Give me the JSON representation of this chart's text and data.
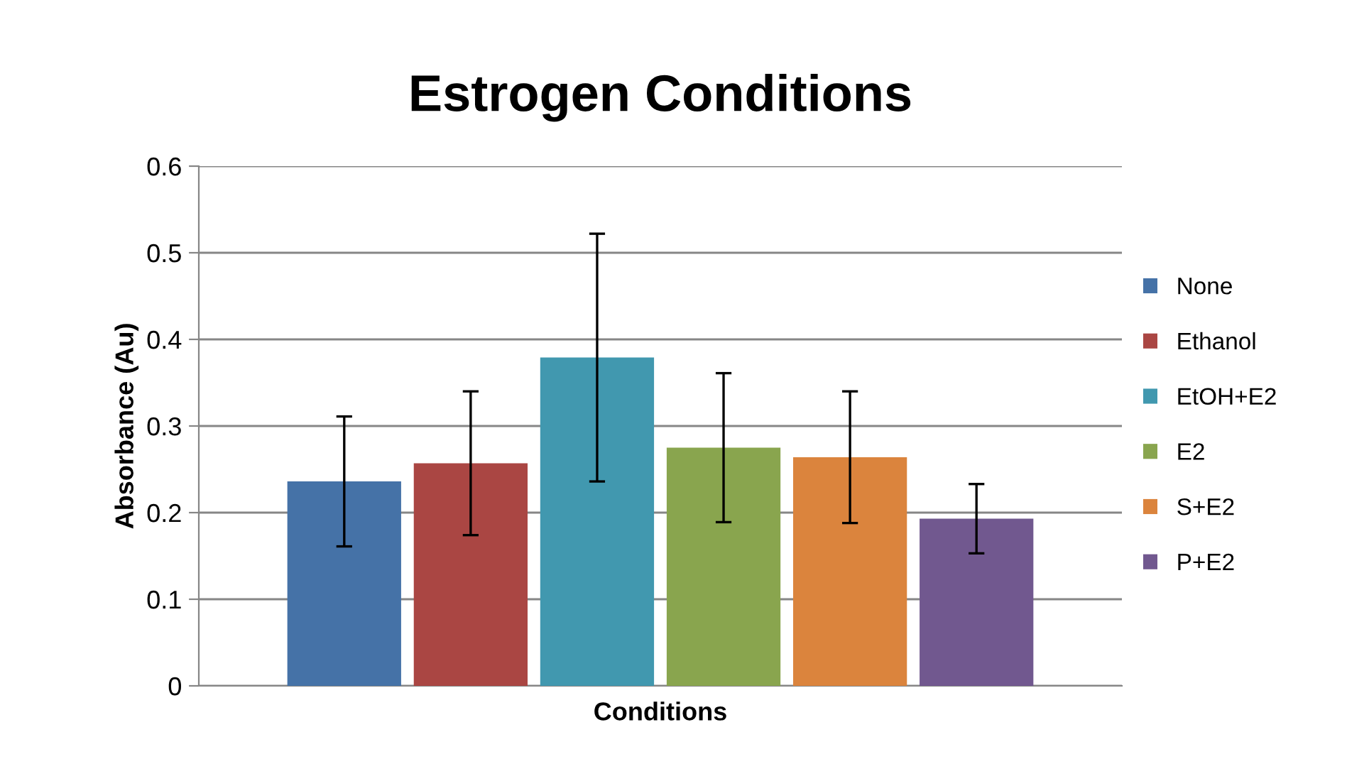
{
  "chart_data": {
    "type": "bar",
    "title": "Estrogen Conditions",
    "xlabel": "Conditions",
    "ylabel": "Absorbance (Au)",
    "categories": [
      null
    ],
    "series": [
      {
        "name": "None",
        "color": "#4572a7",
        "values": [
          0.236
        ],
        "errors": [
          0.075
        ]
      },
      {
        "name": "Ethanol",
        "color": "#aa4643",
        "values": [
          0.257
        ],
        "errors": [
          0.083
        ]
      },
      {
        "name": "EtOH+E2",
        "color": "#4198af",
        "values": [
          0.379
        ],
        "errors": [
          0.143
        ]
      },
      {
        "name": "E2",
        "color": "#89a54e",
        "values": [
          0.275
        ],
        "errors": [
          0.086
        ]
      },
      {
        "name": "S+E2",
        "color": "#db843d",
        "values": [
          0.264
        ],
        "errors": [
          0.076
        ]
      },
      {
        "name": "P+E2",
        "color": "#71588f",
        "values": [
          0.193
        ],
        "errors": [
          0.04
        ]
      }
    ],
    "ylim": [
      0,
      0.6
    ],
    "yticks": [
      0,
      0.1,
      0.2,
      0.3,
      0.4,
      0.5,
      0.6
    ],
    "grid": "y",
    "legend": "right"
  }
}
